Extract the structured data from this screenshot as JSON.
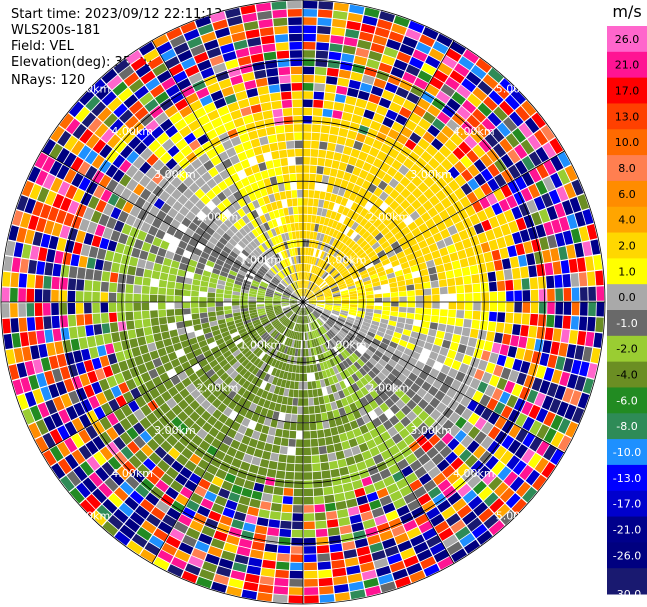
{
  "header": {
    "start_time": "Start time: 2023/09/12 22:11:13",
    "instrument": "WLS200s-181",
    "field": "Field: VEL",
    "elevation": "Elevation(deg): 35.30",
    "nrays": "NRays: 120"
  },
  "chart_data": {
    "type": "heatmap",
    "subtype": "polar-ppi",
    "field": "VEL",
    "nrays": 120,
    "range_rings_km": [
      1.0,
      2.0,
      3.0,
      4.0,
      5.0
    ],
    "ring_labels": [
      "1.00km",
      "2.00km",
      "3.00km",
      "4.00km",
      "5.00km"
    ],
    "radial_lines_deg": [
      0,
      30,
      60,
      90,
      120,
      150
    ],
    "colorbar": {
      "unit": "m/s",
      "ticks": [
        "26.0",
        "21.0",
        "17.0",
        "13.0",
        "10.0",
        "8.0",
        "6.0",
        "4.0",
        "2.0",
        "1.0",
        "0.0",
        "-1.0",
        "-2.0",
        "-4.0",
        "-6.0",
        "-8.0",
        "-10.0",
        "-13.0",
        "-17.0",
        "-21.0",
        "-26.0",
        "-30.0"
      ],
      "bins": [
        {
          "min": 26,
          "max": 30,
          "color": "#ff66cc"
        },
        {
          "min": 21,
          "max": 26,
          "color": "#ff1493"
        },
        {
          "min": 17,
          "max": 21,
          "color": "#ff0000"
        },
        {
          "min": 13,
          "max": 17,
          "color": "#ff4000"
        },
        {
          "min": 10,
          "max": 13,
          "color": "#ff6a00"
        },
        {
          "min": 8,
          "max": 10,
          "color": "#ff7f50"
        },
        {
          "min": 6,
          "max": 8,
          "color": "#ff8c00"
        },
        {
          "min": 4,
          "max": 6,
          "color": "#ffa500"
        },
        {
          "min": 2,
          "max": 4,
          "color": "#ffd700"
        },
        {
          "min": 1,
          "max": 2,
          "color": "#ffff00"
        },
        {
          "min": 0,
          "max": 1,
          "color": "#a9a9a9"
        },
        {
          "min": -1,
          "max": 0,
          "color": "#696969"
        },
        {
          "min": -2,
          "max": -1,
          "color": "#9acd32"
        },
        {
          "min": -4,
          "max": -2,
          "color": "#6b8e23"
        },
        {
          "min": -6,
          "max": -4,
          "color": "#228b22"
        },
        {
          "min": -8,
          "max": -6,
          "color": "#2e8b57"
        },
        {
          "min": -10,
          "max": -8,
          "color": "#1e90ff"
        },
        {
          "min": -13,
          "max": -10,
          "color": "#0000ff"
        },
        {
          "min": -17,
          "max": -13,
          "color": "#0000cd"
        },
        {
          "min": -21,
          "max": -17,
          "color": "#00008b"
        },
        {
          "min": -26,
          "max": -21,
          "color": "#000080"
        },
        {
          "min": -30,
          "max": -26,
          "color": "#191970"
        }
      ]
    },
    "range_gates": 36,
    "max_range_km": 5.0
  }
}
